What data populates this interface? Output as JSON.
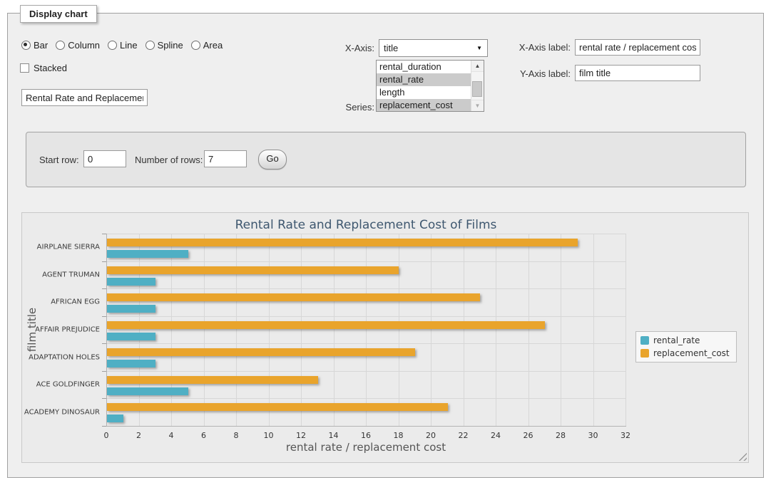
{
  "panel": {
    "legend": "Display chart",
    "chart_types": [
      {
        "label": "Bar",
        "selected": true
      },
      {
        "label": "Column",
        "selected": false
      },
      {
        "label": "Line",
        "selected": false
      },
      {
        "label": "Spline",
        "selected": false
      },
      {
        "label": "Area",
        "selected": false
      }
    ],
    "stacked": {
      "label": "Stacked",
      "checked": false
    },
    "title_input": {
      "value": "Rental Rate and Replacement Cost of Films"
    },
    "x_axis": {
      "label": "X-Axis:",
      "selected": "title"
    },
    "series_picker": {
      "label": "Series:",
      "options": [
        {
          "name": "rental_duration",
          "selected": false
        },
        {
          "name": "rental_rate",
          "selected": true
        },
        {
          "name": "length",
          "selected": false
        },
        {
          "name": "replacement_cost",
          "selected": true
        }
      ]
    },
    "x_axis_label": {
      "label": "X-Axis label:",
      "value": "rental rate / replacement cost"
    },
    "y_axis_label": {
      "label": "Y-Axis label:",
      "value": "film title"
    }
  },
  "row_controls": {
    "start_row_label": "Start row:",
    "start_row_value": "0",
    "num_rows_label": "Number of rows:",
    "num_rows_value": "7",
    "go_label": "Go"
  },
  "chart_data": {
    "type": "bar",
    "title": "Rental Rate and Replacement Cost of Films",
    "categories": [
      "AIRPLANE SIERRA",
      "AGENT TRUMAN",
      "AFRICAN EGG",
      "AFFAIR PREJUDICE",
      "ADAPTATION HOLES",
      "ACE GOLDFINGER",
      "ACADEMY DINOSAUR"
    ],
    "series": [
      {
        "name": "rental_rate",
        "color": "#4fafc4",
        "values": [
          4.99,
          2.99,
          2.99,
          2.99,
          2.99,
          4.99,
          0.99
        ]
      },
      {
        "name": "replacement_cost",
        "color": "#e9a42c",
        "values": [
          28.99,
          17.99,
          22.99,
          26.99,
          18.99,
          12.99,
          20.99
        ]
      }
    ],
    "xlabel": "rental rate / replacement cost",
    "ylabel": "film title",
    "xlim": [
      0,
      32
    ],
    "xticks": [
      0,
      2,
      4,
      6,
      8,
      10,
      12,
      14,
      16,
      18,
      20,
      22,
      24,
      26,
      28,
      30,
      32
    ],
    "grid": true,
    "legend_position": "right"
  }
}
